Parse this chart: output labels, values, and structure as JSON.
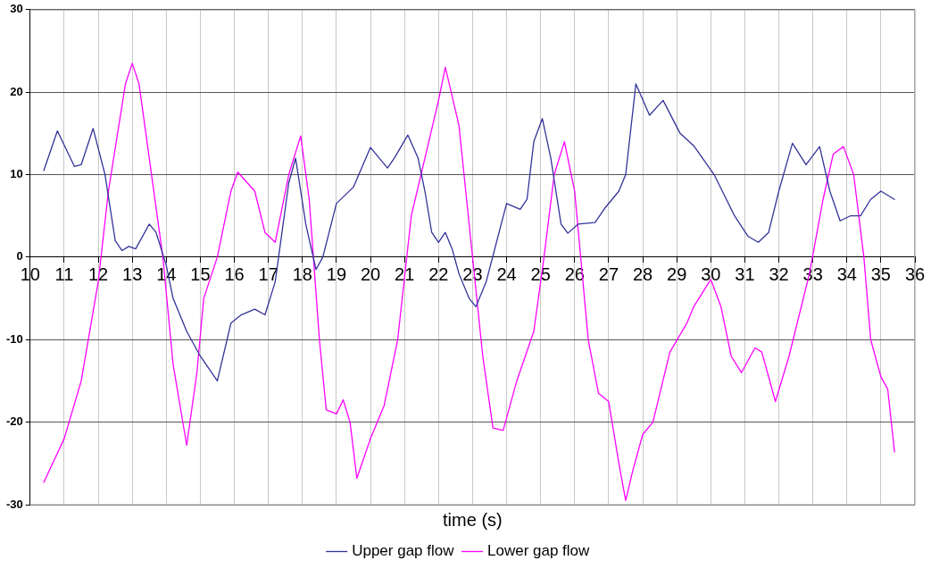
{
  "chart_data": {
    "type": "line",
    "xlabel": "time (s)",
    "xlim": [
      10,
      36
    ],
    "xticks": [
      10,
      11,
      12,
      13,
      14,
      15,
      16,
      17,
      18,
      19,
      20,
      21,
      22,
      23,
      24,
      25,
      26,
      27,
      28,
      29,
      30,
      31,
      32,
      33,
      34,
      35,
      36
    ],
    "ylim": [
      -30,
      30
    ],
    "yticks": [
      -30,
      -20,
      -10,
      0,
      10,
      20,
      30
    ],
    "grid": true,
    "legend": "bottom",
    "marker": "none",
    "line_style": "solid",
    "series": [
      {
        "name": "Upper gap flow",
        "color": "#333399",
        "x": [
          10.4,
          10.8,
          11.3,
          11.5,
          11.85,
          12.2,
          12.5,
          12.7,
          12.9,
          13.1,
          13.5,
          13.7,
          14,
          14.2,
          14.6,
          15,
          15.5,
          15.9,
          16.2,
          16.6,
          16.9,
          17.2,
          17.6,
          17.8,
          18.1,
          18.4,
          18.6,
          19,
          19.5,
          20,
          20.5,
          20.7,
          21.1,
          21.4,
          21.6,
          21.8,
          22,
          22.2,
          22.4,
          22.6,
          22.9,
          23.1,
          23.4,
          24,
          24.4,
          24.6,
          24.8,
          25.05,
          25.3,
          25.6,
          25.8,
          26.1,
          26.6,
          26.9,
          27.3,
          27.5,
          27.8,
          28.2,
          28.6,
          29.1,
          29.5,
          30.1,
          30.7,
          31.1,
          31.4,
          31.7,
          32,
          32.4,
          32.8,
          33.2,
          33.5,
          33.8,
          34.1,
          34.4,
          34.7,
          35,
          35.4
        ],
        "values": [
          10.5,
          15.3,
          11,
          11.2,
          15.6,
          10,
          2,
          0.8,
          1.3,
          1,
          4,
          3,
          -1,
          -5,
          -9,
          -12,
          -15,
          -8,
          -7,
          -6.3,
          -7,
          -3,
          9,
          12,
          4,
          -1.5,
          0,
          6.5,
          8.5,
          13.3,
          10.8,
          12,
          14.8,
          12,
          8,
          3,
          1.8,
          3,
          1,
          -2,
          -5,
          -6,
          -3,
          6.5,
          5.8,
          7,
          14,
          16.8,
          12,
          4,
          2.9,
          4,
          4.2,
          6,
          8,
          10,
          21,
          17.2,
          19,
          15,
          13.5,
          10,
          5,
          2.5,
          1.8,
          3,
          8,
          13.8,
          11.2,
          13.4,
          8,
          4.4,
          5,
          5,
          7,
          8,
          7
        ]
      },
      {
        "name": "Lower gap flow",
        "color": "#ff00ff",
        "x": [
          10.4,
          11,
          11.5,
          12,
          12.3,
          12.8,
          13,
          13.2,
          13.5,
          13.9,
          14.2,
          14.6,
          14.9,
          15.1,
          15.5,
          15.9,
          16.1,
          16.6,
          16.9,
          17.2,
          17.6,
          17.95,
          18.2,
          18.5,
          18.7,
          19,
          19.2,
          19.4,
          19.6,
          20,
          20.4,
          20.8,
          21.2,
          21.6,
          22,
          22.2,
          22.6,
          23,
          23.3,
          23.6,
          23.9,
          24.3,
          24.8,
          25.1,
          25.4,
          25.7,
          26,
          26.4,
          26.7,
          27,
          27.3,
          27.5,
          27.7,
          28,
          28.3,
          28.8,
          29.3,
          29.5,
          30,
          30.3,
          30.6,
          30.9,
          31.3,
          31.5,
          31.9,
          32.3,
          32.9,
          33.3,
          33.6,
          33.9,
          34.2,
          34.5,
          34.7,
          35,
          35.2,
          35.4
        ],
        "values": [
          -27.3,
          -22,
          -15,
          -3,
          8,
          21,
          23.5,
          21,
          12,
          0,
          -13,
          -22.8,
          -14,
          -5,
          0,
          8,
          10.3,
          8,
          3,
          1.8,
          10,
          14.7,
          7,
          -10,
          -18.5,
          -19,
          -17.3,
          -20,
          -26.8,
          -22,
          -18,
          -10,
          5,
          12,
          19,
          23,
          16,
          0,
          -12,
          -20.7,
          -21,
          -15,
          -9,
          0,
          10,
          14,
          8,
          -10,
          -16.5,
          -17.5,
          -25,
          -29.5,
          -26,
          -21.5,
          -20,
          -11.5,
          -8,
          -6,
          -2.7,
          -6,
          -12,
          -14,
          -11,
          -11.5,
          -17.5,
          -12,
          -2,
          7,
          12.5,
          13.4,
          10,
          0,
          -10,
          -14.5,
          -16,
          -23.6
        ]
      }
    ]
  }
}
